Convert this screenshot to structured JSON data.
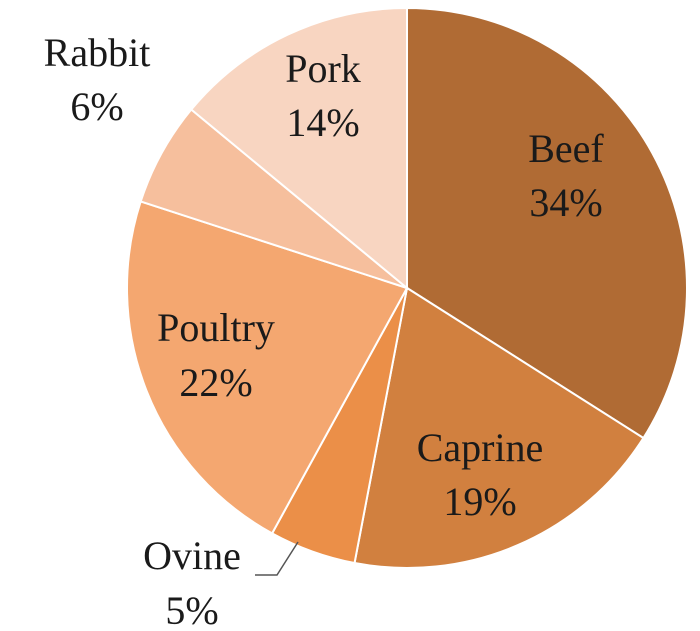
{
  "chart_data": {
    "type": "pie",
    "title": "",
    "start": "top",
    "direction": "clockwise",
    "slices": [
      {
        "label": "Beef",
        "pct_label": "34%",
        "value": 34,
        "color": "#b06b34"
      },
      {
        "label": "Caprine",
        "pct_label": "19%",
        "value": 19,
        "color": "#d1803f"
      },
      {
        "label": "Ovine",
        "pct_label": "5%",
        "value": 5,
        "color": "#eb8f48"
      },
      {
        "label": "Poultry",
        "pct_label": "22%",
        "value": 22,
        "color": "#f4a770"
      },
      {
        "label": "Rabbit",
        "pct_label": "6%",
        "value": 6,
        "color": "#f6bf9d"
      },
      {
        "label": "Pork",
        "pct_label": "14%",
        "value": 14,
        "color": "#f8d5c1"
      }
    ]
  }
}
